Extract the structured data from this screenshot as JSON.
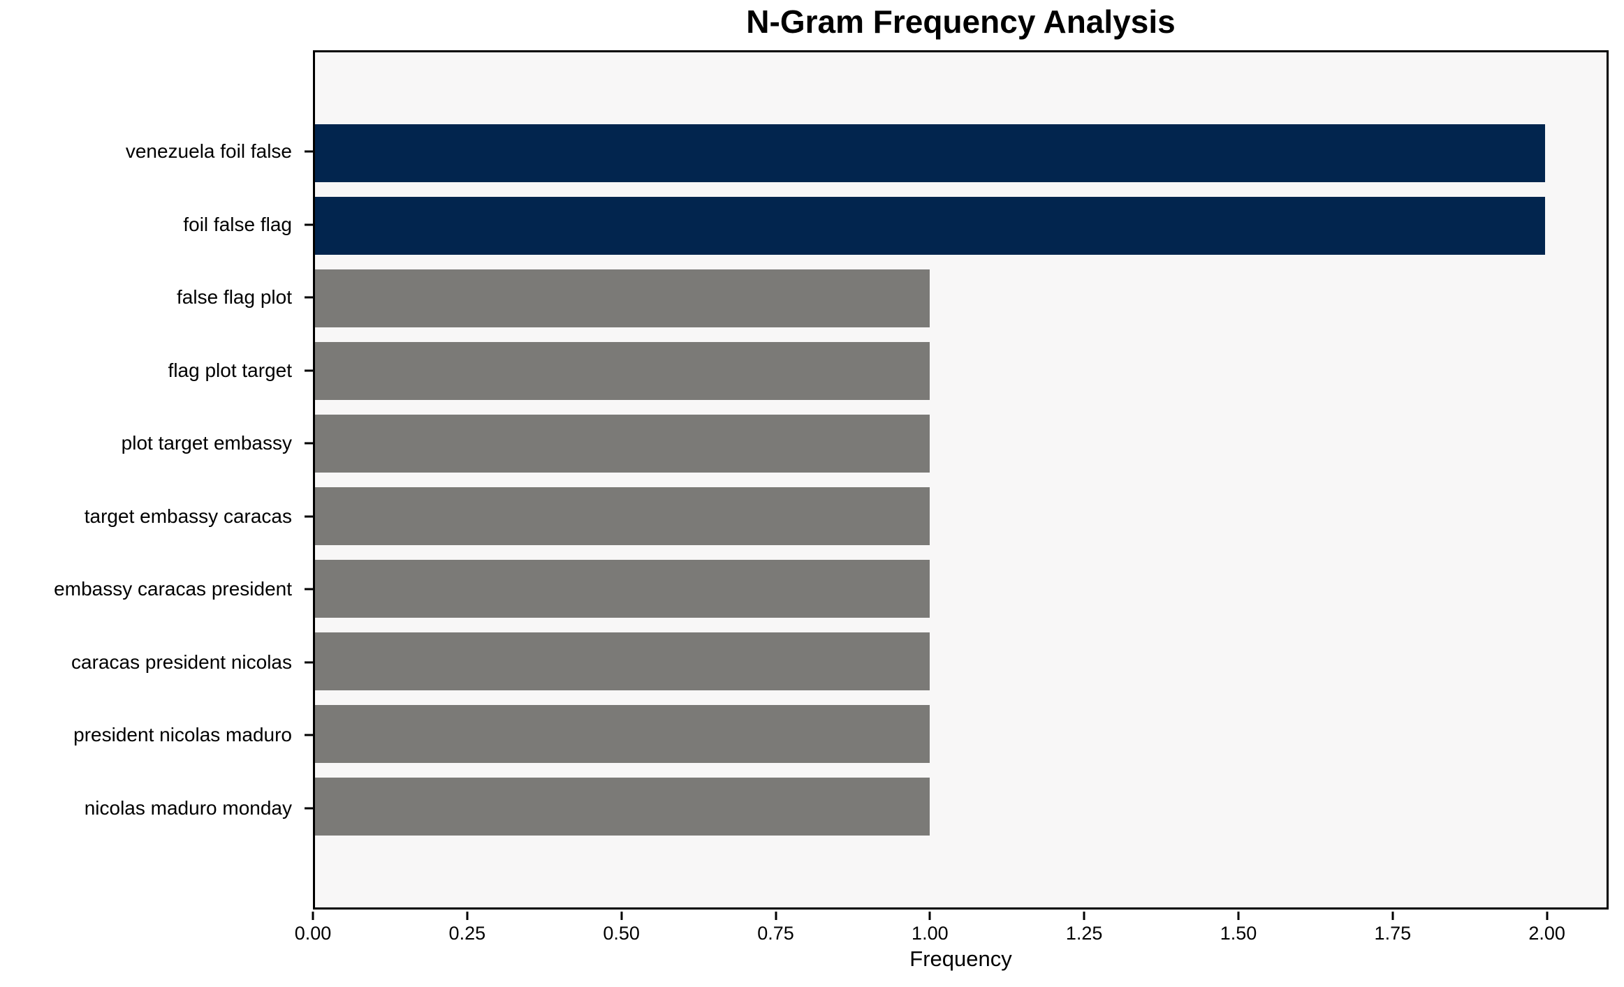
{
  "chart_data": {
    "type": "bar",
    "orientation": "horizontal",
    "title": "N-Gram Frequency Analysis",
    "xlabel": "Frequency",
    "ylabel": "",
    "categories": [
      "venezuela foil false",
      "foil false flag",
      "false flag plot",
      "flag plot target",
      "plot target embassy",
      "target embassy caracas",
      "embassy caracas president",
      "caracas president nicolas",
      "president nicolas maduro",
      "nicolas maduro monday"
    ],
    "values": [
      2,
      2,
      1,
      1,
      1,
      1,
      1,
      1,
      1,
      1
    ],
    "bar_colors": [
      "#02254E",
      "#02254E",
      "#7B7A77",
      "#7B7A77",
      "#7B7A77",
      "#7B7A77",
      "#7B7A77",
      "#7B7A77",
      "#7B7A77",
      "#7B7A77"
    ],
    "colors": {
      "highlight": "#02254E",
      "default": "#7B7A77",
      "plot_background": "#F8F7F7",
      "figure_background": "#FFFFFF",
      "axis": "#000000"
    },
    "xlim": [
      0,
      2.1
    ],
    "xticks": [
      0,
      0.25,
      0.5,
      0.75,
      1.0,
      1.25,
      1.5,
      1.75,
      2.0
    ],
    "xtick_labels": [
      "0.00",
      "0.25",
      "0.50",
      "0.75",
      "1.00",
      "1.25",
      "1.50",
      "1.75",
      "2.00"
    ],
    "bar_height_fraction": 0.8,
    "grid": false,
    "legend": null
  }
}
